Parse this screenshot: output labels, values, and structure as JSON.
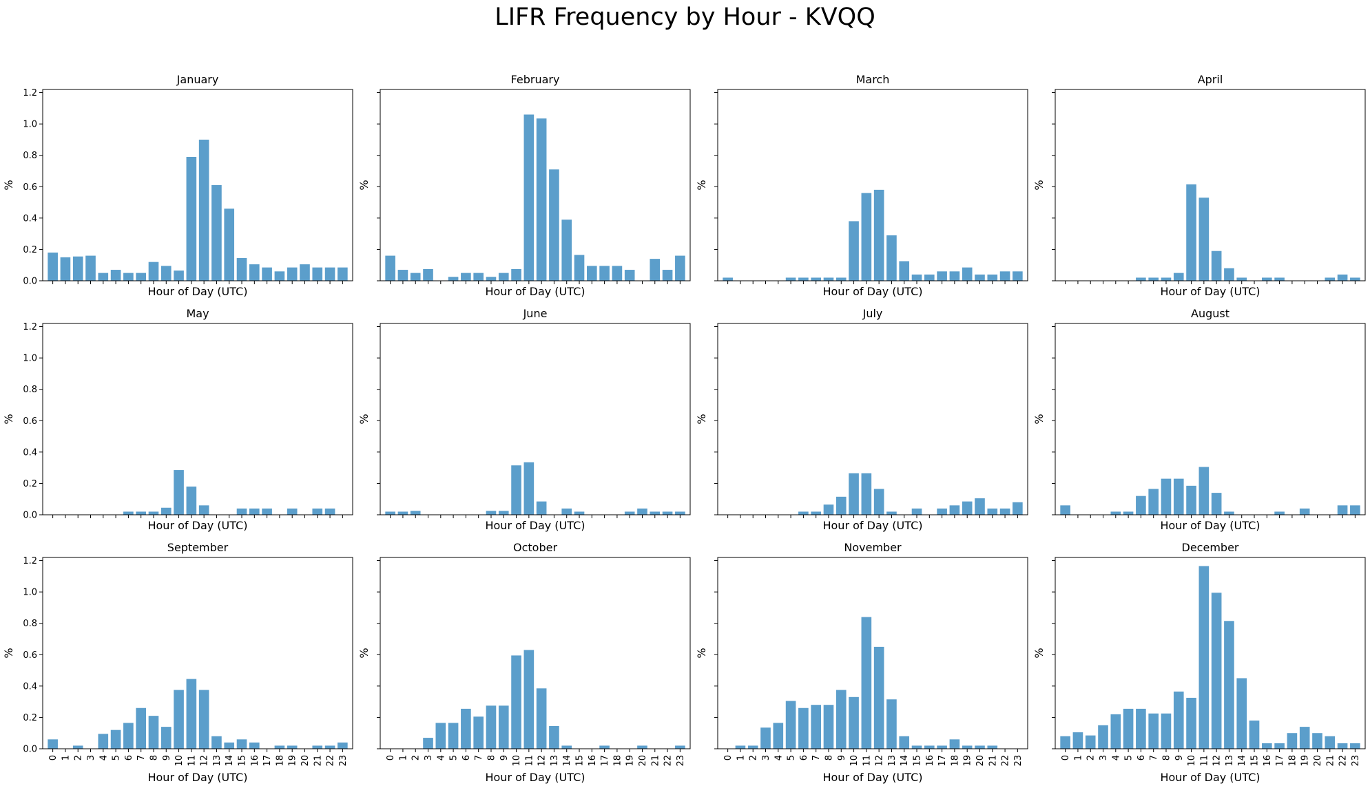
{
  "title": "LIFR Frequency by Hour - KVQQ",
  "colors": {
    "bar": "#5b9ecb",
    "axis": "#000000"
  },
  "chart_data": {
    "type": "bar",
    "layout": "3x4 grid of subplots",
    "shared_y": true,
    "shared_x": true,
    "xlabel": "Hour of Day (UTC)",
    "ylabel": "%",
    "ylim": [
      0,
      1.22
    ],
    "yticks": [
      "0.0",
      "0.2",
      "0.4",
      "0.6",
      "0.8",
      "1.0",
      "1.2"
    ],
    "categories": [
      "0",
      "1",
      "2",
      "3",
      "4",
      "5",
      "6",
      "7",
      "8",
      "9",
      "10",
      "11",
      "12",
      "13",
      "14",
      "15",
      "16",
      "17",
      "18",
      "19",
      "20",
      "21",
      "22",
      "23"
    ],
    "panels": [
      {
        "title": "January",
        "values": [
          0.18,
          0.15,
          0.155,
          0.16,
          0.05,
          0.07,
          0.05,
          0.05,
          0.12,
          0.095,
          0.065,
          0.79,
          0.9,
          0.61,
          0.46,
          0.145,
          0.105,
          0.085,
          0.06,
          0.085,
          0.105,
          0.085,
          0.085,
          0.085
        ]
      },
      {
        "title": "February",
        "values": [
          0.16,
          0.07,
          0.05,
          0.075,
          0,
          0.025,
          0.05,
          0.05,
          0.025,
          0.05,
          0.075,
          1.06,
          1.035,
          0.71,
          0.39,
          0.165,
          0.095,
          0.095,
          0.095,
          0.07,
          0,
          0.14,
          0.07,
          0.16
        ]
      },
      {
        "title": "March",
        "values": [
          0.02,
          0,
          0,
          0,
          0,
          0.02,
          0.02,
          0.02,
          0.02,
          0.02,
          0.38,
          0.56,
          0.58,
          0.29,
          0.125,
          0.04,
          0.04,
          0.06,
          0.06,
          0.085,
          0.04,
          0.04,
          0.06,
          0.06
        ]
      },
      {
        "title": "April",
        "values": [
          0,
          0,
          0,
          0,
          0,
          0,
          0.02,
          0.02,
          0.02,
          0.05,
          0.615,
          0.53,
          0.19,
          0.08,
          0.02,
          0,
          0.02,
          0.02,
          0,
          0,
          0,
          0.02,
          0.04,
          0.02
        ]
      },
      {
        "title": "May",
        "values": [
          0,
          0,
          0,
          0,
          0,
          0,
          0.02,
          0.02,
          0.02,
          0.045,
          0.285,
          0.18,
          0.06,
          0,
          0,
          0.04,
          0.04,
          0.04,
          0,
          0.04,
          0,
          0.04,
          0.04,
          0
        ]
      },
      {
        "title": "June",
        "values": [
          0.02,
          0.02,
          0.025,
          0,
          0,
          0,
          0,
          0,
          0.025,
          0.025,
          0.315,
          0.335,
          0.085,
          0,
          0.04,
          0.02,
          0,
          0,
          0,
          0.02,
          0.04,
          0.02,
          0.02,
          0.02
        ]
      },
      {
        "title": "July",
        "values": [
          0,
          0,
          0,
          0,
          0,
          0,
          0.02,
          0.02,
          0.065,
          0.115,
          0.265,
          0.265,
          0.165,
          0.02,
          0,
          0.04,
          0,
          0.04,
          0.06,
          0.085,
          0.105,
          0.04,
          0.04,
          0.08
        ]
      },
      {
        "title": "August",
        "values": [
          0.06,
          0,
          0,
          0,
          0.02,
          0.02,
          0.12,
          0.165,
          0.23,
          0.23,
          0.185,
          0.305,
          0.14,
          0.02,
          0,
          0,
          0,
          0.02,
          0,
          0.04,
          0,
          0,
          0.06,
          0.06
        ]
      },
      {
        "title": "September",
        "values": [
          0.06,
          0,
          0.02,
          0,
          0.095,
          0.12,
          0.165,
          0.26,
          0.21,
          0.14,
          0.375,
          0.445,
          0.375,
          0.08,
          0.04,
          0.06,
          0.04,
          0,
          0.02,
          0.02,
          0,
          0.02,
          0.02,
          0.04
        ]
      },
      {
        "title": "October",
        "values": [
          0,
          0,
          0,
          0.07,
          0.165,
          0.165,
          0.255,
          0.205,
          0.275,
          0.275,
          0.595,
          0.63,
          0.385,
          0.145,
          0.02,
          0,
          0,
          0.02,
          0,
          0,
          0.02,
          0,
          0,
          0.02
        ]
      },
      {
        "title": "November",
        "values": [
          0,
          0.02,
          0.02,
          0.135,
          0.165,
          0.305,
          0.26,
          0.28,
          0.28,
          0.375,
          0.33,
          0.84,
          0.65,
          0.315,
          0.08,
          0.02,
          0.02,
          0.02,
          0.06,
          0.02,
          0.02,
          0.02,
          0,
          0
        ]
      },
      {
        "title": "December",
        "values": [
          0.08,
          0.105,
          0.085,
          0.15,
          0.22,
          0.255,
          0.255,
          0.225,
          0.225,
          0.365,
          0.325,
          1.165,
          0.995,
          0.815,
          0.45,
          0.18,
          0.035,
          0.035,
          0.1,
          0.14,
          0.1,
          0.08,
          0.035,
          0.035
        ]
      }
    ]
  }
}
